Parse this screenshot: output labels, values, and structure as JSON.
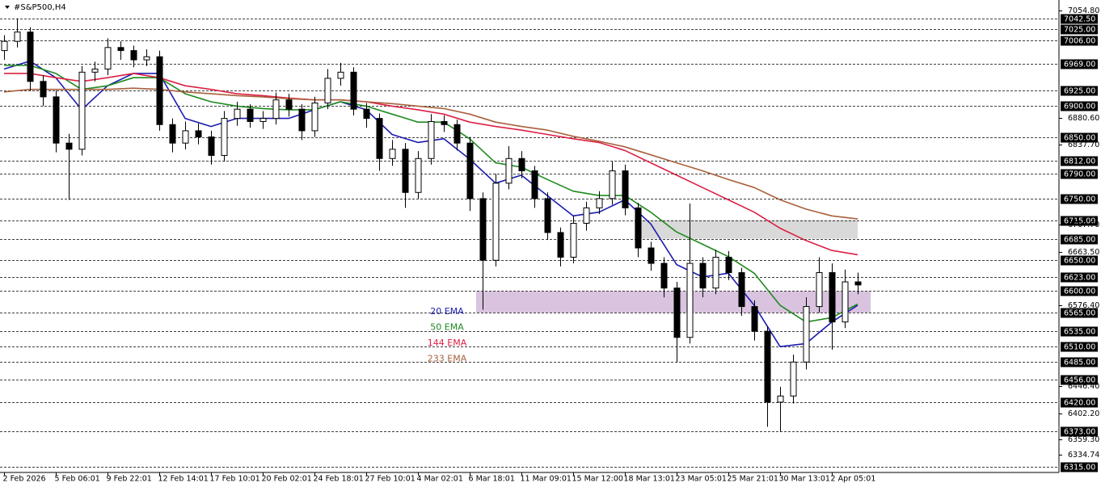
{
  "chart_data": {
    "type": "candlestick",
    "title": "#S&P500,H4",
    "xlim": [
      -1.25,
      325.75
    ],
    "ylim": [
      6306,
      7072
    ],
    "xticks": [
      {
        "value": 0,
        "label": "2 Feb 2026"
      },
      {
        "value": 16,
        "label": "5 Feb 06:01"
      },
      {
        "value": 32,
        "label": "9 Feb 22:01"
      },
      {
        "value": 48,
        "label": "12 Feb 14:01"
      },
      {
        "value": 64,
        "label": "17 Feb 10:01"
      },
      {
        "value": 80,
        "label": "20 Feb 02:01"
      },
      {
        "value": 96,
        "label": "24 Feb 18:01"
      },
      {
        "value": 112,
        "label": "27 Feb 10:01"
      },
      {
        "value": 128,
        "label": "4 Mar 02:01"
      },
      {
        "value": 144,
        "label": "6 Mar 18:01"
      },
      {
        "value": 160,
        "label": "11 Mar 09:01"
      },
      {
        "value": 176,
        "label": "15 Mar 12:00"
      },
      {
        "value": 192,
        "label": "18 Mar 13:01"
      },
      {
        "value": 208,
        "label": "23 Mar 05:01"
      },
      {
        "value": 224,
        "label": "25 Mar 21:01"
      },
      {
        "value": 240,
        "label": "30 Mar 13:01"
      },
      {
        "value": 256,
        "label": "2 Apr 05:01"
      }
    ],
    "yticks": [
      {
        "value": 7054.8,
        "label": "7054.80"
      },
      {
        "value": 6880.6,
        "label": "6880.60"
      },
      {
        "value": 6837.7,
        "label": "6837.70"
      },
      {
        "value": 6707.7,
        "label": "6707.70"
      },
      {
        "value": 6663.5,
        "label": "6663.50"
      },
      {
        "value": 6576.4,
        "label": "6576.40"
      },
      {
        "value": 6446.4,
        "label": "6446.40"
      },
      {
        "value": 6402.2,
        "label": "6402.20"
      },
      {
        "value": 6359.3,
        "label": "6359.30"
      },
      6334.74
    ],
    "levels": [
      {
        "value": 7042.5,
        "label": "7042.50"
      },
      {
        "value": 7025,
        "label": "7025.00"
      },
      {
        "value": 7006,
        "label": "7006.00"
      },
      {
        "value": 6969,
        "label": "6969.00"
      },
      {
        "value": 6925,
        "label": "6925.00"
      },
      {
        "value": 6900,
        "label": "6900.00"
      },
      {
        "value": 6850,
        "label": "6850.00"
      },
      {
        "value": 6812,
        "label": "6812.00"
      },
      {
        "value": 6790,
        "label": "6790.00"
      },
      {
        "value": 6750,
        "label": "6750.00"
      },
      {
        "value": 6715,
        "label": "6715.00"
      },
      {
        "value": 6685,
        "label": "6685.00"
      },
      {
        "value": 6650,
        "label": "6650.00"
      },
      {
        "value": 6623,
        "label": "6623.00"
      },
      {
        "value": 6600,
        "label": "6600.00"
      },
      {
        "value": 6565,
        "label": "6565.00"
      },
      {
        "value": 6535,
        "label": "6535.00"
      },
      {
        "value": 6510,
        "label": "6510.00"
      },
      {
        "value": 6485,
        "label": "6485.00"
      },
      {
        "value": 6456,
        "label": "6456.00"
      },
      {
        "value": 6420,
        "label": "6420.00"
      },
      {
        "value": 6373,
        "label": "6373.00"
      },
      {
        "value": 6315,
        "label": "6315.00"
      }
    ],
    "zones": [
      {
        "x": [
          195,
          264
        ],
        "y": [
          6685,
          6715
        ],
        "color": "#d9d9d9"
      },
      {
        "x": [
          146,
          268
        ],
        "y": [
          6565,
          6600
        ],
        "color": "#d9c3de"
      }
    ],
    "candles": {
      "up_color": "#ffffff",
      "down_color": "#000000",
      "x": [
        0,
        4,
        8,
        12,
        16,
        20,
        24,
        28,
        32,
        36,
        40,
        44,
        48,
        52,
        56,
        60,
        64,
        68,
        72,
        76,
        80,
        84,
        88,
        92,
        96,
        100,
        104,
        108,
        112,
        116,
        120,
        124,
        128,
        132,
        136,
        140,
        144,
        148,
        152,
        156,
        160,
        164,
        168,
        172,
        176,
        180,
        184,
        188,
        192,
        196,
        200,
        204,
        208,
        212,
        216,
        220,
        224,
        228,
        232,
        236,
        240,
        244,
        248,
        252,
        256,
        260,
        264
      ],
      "open": [
        6990,
        7005,
        7020,
        6940,
        6915,
        6840,
        6830,
        6955,
        6960,
        6995,
        6990,
        6975,
        6980,
        6870,
        6840,
        6860,
        6850,
        6820,
        6880,
        6895,
        6875,
        6880,
        6910,
        6895,
        6860,
        6905,
        6945,
        6955,
        6895,
        6880,
        6815,
        6830,
        6760,
        6815,
        6875,
        6870,
        6840,
        6750,
        6650,
        6775,
        6815,
        6795,
        6750,
        6695,
        6655,
        6710,
        6735,
        6750,
        6795,
        6735,
        6670,
        6645,
        6605,
        6525,
        6645,
        6605,
        6655,
        6630,
        6575,
        6535,
        6420,
        6430,
        6485,
        6575,
        6630,
        6550,
        6615
      ],
      "high": [
        7015,
        7042,
        7028,
        6950,
        6925,
        6855,
        6965,
        6972,
        7010,
        7005,
        6998,
        6992,
        6990,
        6880,
        6875,
        6872,
        6860,
        6892,
        6907,
        6903,
        6892,
        6922,
        6920,
        6903,
        6915,
        6960,
        6970,
        6963,
        6905,
        6888,
        6845,
        6840,
        6827,
        6887,
        6885,
        6878,
        6850,
        6760,
        6790,
        6835,
        6827,
        6803,
        6760,
        6703,
        6722,
        6745,
        6762,
        6810,
        6805,
        6743,
        6680,
        6655,
        6615,
        6742,
        6655,
        6667,
        6665,
        6638,
        6585,
        6543,
        6445,
        6497,
        6590,
        6655,
        6645,
        6635,
        6630
      ],
      "low": [
        6975,
        6995,
        6925,
        6900,
        6825,
        6748,
        6820,
        6940,
        6950,
        6975,
        6963,
        6965,
        6860,
        6825,
        6830,
        6838,
        6805,
        6810,
        6868,
        6865,
        6863,
        6870,
        6883,
        6845,
        6850,
        6895,
        6933,
        6885,
        6865,
        6795,
        6803,
        6735,
        6750,
        6805,
        6858,
        6828,
        6730,
        6570,
        6640,
        6765,
        6783,
        6735,
        6683,
        6640,
        6645,
        6698,
        6725,
        6740,
        6723,
        6655,
        6633,
        6590,
        6484,
        6515,
        6590,
        6595,
        6618,
        6560,
        6520,
        6380,
        6372,
        6418,
        6473,
        6565,
        6505,
        6540,
        6595
      ],
      "close": [
        7005,
        7020,
        6940,
        6915,
        6840,
        6830,
        6955,
        6960,
        6995,
        6990,
        6975,
        6980,
        6870,
        6840,
        6860,
        6850,
        6820,
        6880,
        6895,
        6875,
        6880,
        6910,
        6895,
        6860,
        6905,
        6945,
        6955,
        6895,
        6880,
        6815,
        6830,
        6760,
        6815,
        6875,
        6870,
        6840,
        6750,
        6650,
        6775,
        6815,
        6795,
        6750,
        6695,
        6655,
        6710,
        6735,
        6750,
        6795,
        6735,
        6670,
        6645,
        6605,
        6525,
        6645,
        6605,
        6655,
        6630,
        6575,
        6535,
        6420,
        6430,
        6485,
        6575,
        6630,
        6550,
        6615,
        6610
      ]
    },
    "series": [
      {
        "name": "20 EMA",
        "color": "#1c1cb0",
        "x": [
          0,
          8,
          16,
          24,
          32,
          40,
          48,
          56,
          64,
          72,
          80,
          88,
          96,
          104,
          112,
          120,
          128,
          136,
          144,
          152,
          160,
          168,
          176,
          184,
          192,
          200,
          208,
          216,
          224,
          232,
          240,
          248,
          256,
          264
        ],
        "values": [
          6960,
          6973,
          6946,
          6894,
          6933,
          6953,
          6953,
          6880,
          6867,
          6880,
          6880,
          6880,
          6894,
          6907,
          6894,
          6854,
          6841,
          6847,
          6814,
          6775,
          6788,
          6755,
          6722,
          6728,
          6748,
          6709,
          6643,
          6623,
          6629,
          6577,
          6510,
          6515,
          6550,
          6577
        ]
      },
      {
        "name": "50 EMA",
        "color": "#1f8a1f",
        "x": [
          0,
          8,
          16,
          24,
          32,
          40,
          48,
          56,
          64,
          72,
          80,
          88,
          96,
          104,
          112,
          120,
          128,
          136,
          144,
          152,
          160,
          168,
          176,
          184,
          192,
          200,
          208,
          216,
          224,
          232,
          240,
          248,
          256,
          264
        ],
        "values": [
          6966,
          6966,
          6953,
          6927,
          6933,
          6946,
          6946,
          6920,
          6907,
          6900,
          6896,
          6894,
          6894,
          6907,
          6900,
          6887,
          6874,
          6874,
          6847,
          6808,
          6801,
          6781,
          6762,
          6755,
          6755,
          6728,
          6696,
          6676,
          6656,
          6629,
          6577,
          6550,
          6557,
          6579
        ]
      },
      {
        "name": "144 EMA",
        "color": "#dc2045",
        "x": [
          0,
          8,
          16,
          24,
          32,
          40,
          48,
          56,
          64,
          72,
          80,
          88,
          96,
          104,
          112,
          120,
          128,
          136,
          144,
          152,
          160,
          168,
          176,
          184,
          192,
          200,
          208,
          216,
          224,
          232,
          240,
          248,
          256,
          264
        ],
        "values": [
          6953,
          6953,
          6946,
          6940,
          6946,
          6953,
          6946,
          6933,
          6927,
          6920,
          6917,
          6913,
          6910,
          6910,
          6907,
          6900,
          6894,
          6887,
          6874,
          6867,
          6861,
          6854,
          6847,
          6841,
          6828,
          6808,
          6788,
          6768,
          6748,
          6728,
          6702,
          6682,
          6666,
          6659
        ]
      },
      {
        "name": "233 EMA",
        "color": "#a8603c",
        "x": [
          0,
          8,
          16,
          24,
          32,
          40,
          48,
          56,
          64,
          72,
          80,
          88,
          96,
          104,
          112,
          120,
          128,
          136,
          144,
          152,
          160,
          168,
          176,
          184,
          192,
          200,
          208,
          216,
          224,
          232,
          240,
          248,
          256,
          264
        ],
        "values": [
          6923,
          6927,
          6927,
          6927,
          6927,
          6929,
          6927,
          6923,
          6920,
          6917,
          6915,
          6912,
          6910,
          6910,
          6907,
          6904,
          6900,
          6896,
          6887,
          6874,
          6867,
          6861,
          6851,
          6843,
          6834,
          6821,
          6808,
          6795,
          6781,
          6768,
          6748,
          6733,
          6722,
          6717
        ]
      }
    ]
  }
}
